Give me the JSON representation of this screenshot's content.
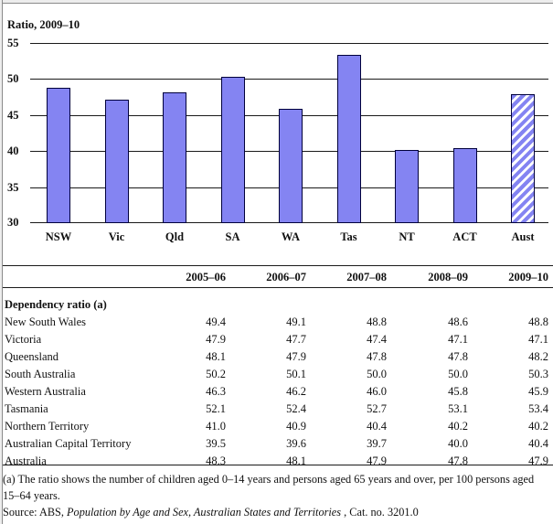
{
  "chart_data": {
    "type": "bar",
    "title": "Ratio, 2009–10",
    "categories": [
      "NSW",
      "Vic",
      "Qld",
      "SA",
      "WA",
      "Tas",
      "NT",
      "ACT",
      "Aust"
    ],
    "values": [
      48.8,
      47.1,
      48.2,
      50.3,
      45.9,
      53.4,
      40.2,
      40.4,
      47.9
    ],
    "xlabel": "",
    "ylabel": "Ratio, 2009–10",
    "ylim": [
      30,
      55
    ],
    "y_ticks": [
      55,
      50,
      45,
      40,
      35,
      30
    ],
    "grid": "horizontal",
    "legend_position": "none",
    "hatched_category": "Aust"
  },
  "style": {
    "bar_fill": "#8484f2",
    "bar_border": "#00003c",
    "grid_line": "#1a1a1a",
    "frame_line": "#8a8a8a",
    "frame_bg": "#ededed"
  },
  "table": {
    "columns": [
      "2005–06",
      "2006–07",
      "2007–08",
      "2008–09",
      "2009–10"
    ],
    "section_label": "Dependency ratio (a)",
    "rows": [
      {
        "label": "New South Wales",
        "values": [
          "49.4",
          "49.1",
          "48.8",
          "48.6",
          "48.8"
        ]
      },
      {
        "label": "Victoria",
        "values": [
          "47.9",
          "47.7",
          "47.4",
          "47.1",
          "47.1"
        ]
      },
      {
        "label": "Queensland",
        "values": [
          "48.1",
          "47.9",
          "47.8",
          "47.8",
          "48.2"
        ]
      },
      {
        "label": "South Australia",
        "values": [
          "50.2",
          "50.1",
          "50.0",
          "50.0",
          "50.3"
        ]
      },
      {
        "label": "Western Australia",
        "values": [
          "46.3",
          "46.2",
          "46.0",
          "45.8",
          "45.9"
        ]
      },
      {
        "label": "Tasmania",
        "values": [
          "52.1",
          "52.4",
          "52.7",
          "53.1",
          "53.4"
        ]
      },
      {
        "label": "Northern Territory",
        "values": [
          "41.0",
          "40.9",
          "40.4",
          "40.2",
          "40.2"
        ]
      },
      {
        "label": "Australian Capital Territory",
        "values": [
          "39.5",
          "39.6",
          "39.7",
          "40.0",
          "40.4"
        ]
      },
      {
        "label": "Australia",
        "values": [
          "48.3",
          "48.1",
          "47.9",
          "47.8",
          "47.9"
        ]
      }
    ]
  },
  "notes": {
    "footnote": "(a) The ratio shows the number of children aged 0–14 years and persons aged 65 years and over, per 100 persons aged 15–64 years.",
    "source_prefix": "Source: ABS, ",
    "source_italic": "Population by Age and Sex, Australian States and Territories",
    "source_suffix": " , Cat. no. 3201.0"
  }
}
